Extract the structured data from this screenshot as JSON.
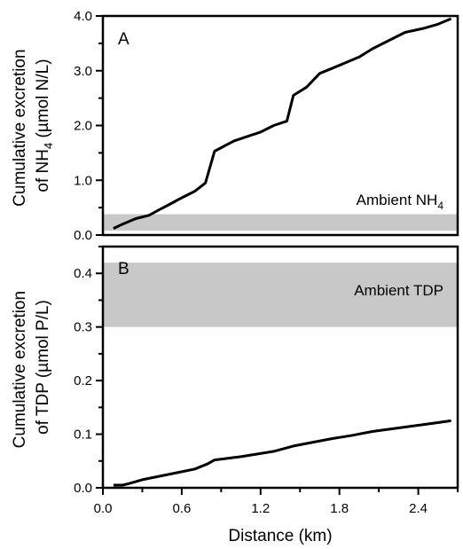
{
  "chart_data": [
    {
      "type": "line",
      "panel_label": "A",
      "ylabel_line1": "Cumulative excretion",
      "ylabel_line2_prefix": "of NH",
      "ylabel_line2_sub": "4",
      "ylabel_line2_suffix": "  (µmol N/L)",
      "xlim": [
        0.0,
        2.7
      ],
      "ylim": [
        0.0,
        4.0
      ],
      "yticks": [
        0.0,
        1.0,
        2.0,
        3.0,
        4.0
      ],
      "ytick_labels": [
        "0.0",
        "1.0",
        "2.0",
        "3.0",
        "4.0"
      ],
      "band": {
        "from": 0.08,
        "to": 0.38,
        "label_prefix": "Ambient NH",
        "label_sub": "4",
        "color": "#c8c8c8"
      },
      "series": [
        {
          "color": "#000000",
          "x": [
            0.08,
            0.15,
            0.25,
            0.35,
            0.42,
            0.5,
            0.6,
            0.7,
            0.78,
            0.85,
            0.92,
            1.0,
            1.1,
            1.2,
            1.3,
            1.4,
            1.45,
            1.55,
            1.65,
            1.75,
            1.85,
            1.95,
            2.05,
            2.15,
            2.3,
            2.45,
            2.55,
            2.65
          ],
          "y": [
            0.12,
            0.2,
            0.3,
            0.36,
            0.45,
            0.55,
            0.68,
            0.8,
            0.95,
            1.53,
            1.62,
            1.72,
            1.8,
            1.88,
            2.0,
            2.08,
            2.55,
            2.7,
            2.95,
            3.05,
            3.15,
            3.25,
            3.4,
            3.52,
            3.7,
            3.78,
            3.85,
            3.95
          ]
        }
      ]
    },
    {
      "type": "line",
      "panel_label": "B",
      "ylabel_line1": "Cumulative excretion",
      "ylabel_line2": "of TDP  (µmol P/L)",
      "xlabel": "Distance (km)",
      "xlim": [
        0.0,
        2.7
      ],
      "ylim": [
        0.0,
        0.45
      ],
      "xticks": [
        0.0,
        0.6,
        1.2,
        1.8,
        2.4
      ],
      "xtick_labels": [
        "0.0",
        "0.6",
        "1.2",
        "1.8",
        "2.4"
      ],
      "yticks": [
        0.0,
        0.1,
        0.2,
        0.3,
        0.4
      ],
      "ytick_labels": [
        "0.0",
        "0.1",
        "0.2",
        "0.3",
        "0.4"
      ],
      "band": {
        "from": 0.3,
        "to": 0.42,
        "label": "Ambient TDP",
        "color": "#c8c8c8"
      },
      "series": [
        {
          "color": "#000000",
          "x": [
            0.08,
            0.15,
            0.2,
            0.3,
            0.4,
            0.5,
            0.6,
            0.7,
            0.8,
            0.85,
            0.95,
            1.05,
            1.15,
            1.3,
            1.45,
            1.6,
            1.75,
            1.9,
            2.05,
            2.2,
            2.35,
            2.5,
            2.65
          ],
          "y": [
            0.005,
            0.005,
            0.008,
            0.015,
            0.02,
            0.025,
            0.03,
            0.035,
            0.045,
            0.052,
            0.055,
            0.058,
            0.062,
            0.068,
            0.078,
            0.085,
            0.092,
            0.098,
            0.105,
            0.11,
            0.115,
            0.12,
            0.125
          ]
        }
      ]
    }
  ]
}
